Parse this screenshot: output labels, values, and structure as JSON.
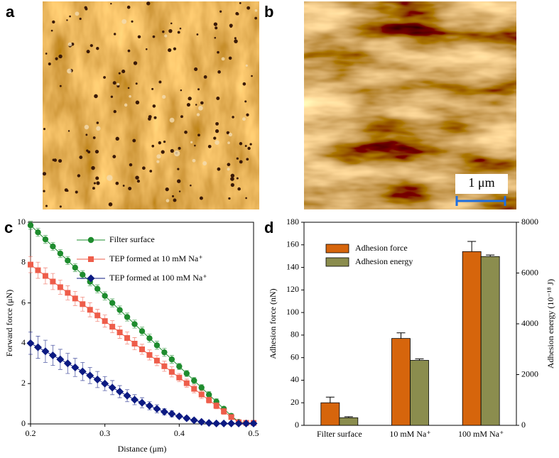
{
  "panels": [
    "a",
    "b",
    "c",
    "d"
  ],
  "scale_bar": "1 μm",
  "chart_data": [
    {
      "type": "line",
      "x": [
        0.2,
        0.21,
        0.22,
        0.23,
        0.24,
        0.25,
        0.26,
        0.27,
        0.28,
        0.29,
        0.3,
        0.31,
        0.32,
        0.33,
        0.34,
        0.35,
        0.36,
        0.37,
        0.38,
        0.39,
        0.4,
        0.41,
        0.42,
        0.43,
        0.44,
        0.45,
        0.46,
        0.47,
        0.48,
        0.49,
        0.5
      ],
      "xlabel": "Distance (μm)",
      "ylabel": "Forward force (μN)",
      "xlim": [
        0.2,
        0.5
      ],
      "xticks": [
        0.2,
        0.3,
        0.4,
        0.5
      ],
      "ylim": [
        0,
        10
      ],
      "yticks": [
        0,
        2,
        4,
        6,
        8,
        10
      ],
      "series": [
        {
          "name": "Filter surface",
          "color": "#1e8c2e",
          "marker": "circle",
          "values": [
            9.85,
            9.5,
            9.15,
            8.8,
            8.45,
            8.1,
            7.75,
            7.4,
            7.05,
            6.7,
            6.35,
            6.0,
            5.65,
            5.3,
            4.95,
            4.6,
            4.25,
            3.9,
            3.55,
            3.2,
            2.85,
            2.5,
            2.15,
            1.8,
            1.45,
            1.1,
            0.75,
            0.4,
            0.1,
            0.05,
            0.05
          ],
          "errors": [
            0.2,
            0.2,
            0.2,
            0.2,
            0.2,
            0.2,
            0.2,
            0.2,
            0.2,
            0.2,
            0.2,
            0.2,
            0.2,
            0.2,
            0.2,
            0.2,
            0.2,
            0.2,
            0.2,
            0.2,
            0.15,
            0.15,
            0.15,
            0.15,
            0.15,
            0.15,
            0.1,
            0.1,
            0.05,
            0.05,
            0.05
          ]
        },
        {
          "name": "TEP formed at 10 mM Na⁺",
          "color": "#ee5d4a",
          "marker": "square",
          "values": [
            7.9,
            7.62,
            7.34,
            7.06,
            6.78,
            6.5,
            6.22,
            5.94,
            5.66,
            5.38,
            5.1,
            4.82,
            4.54,
            4.26,
            3.98,
            3.7,
            3.42,
            3.14,
            2.86,
            2.58,
            2.3,
            2.02,
            1.74,
            1.46,
            1.18,
            0.9,
            0.62,
            0.34,
            0.08,
            0.05,
            0.05
          ],
          "errors": [
            0.4,
            0.4,
            0.4,
            0.4,
            0.35,
            0.35,
            0.35,
            0.35,
            0.35,
            0.3,
            0.3,
            0.3,
            0.3,
            0.3,
            0.3,
            0.25,
            0.25,
            0.25,
            0.25,
            0.25,
            0.2,
            0.2,
            0.2,
            0.2,
            0.15,
            0.15,
            0.15,
            0.1,
            0.05,
            0.05,
            0.05
          ]
        },
        {
          "name": "TEP formed at 100 mM Na⁺",
          "color": "#0c1a82",
          "marker": "diamond",
          "values": [
            4.0,
            3.8,
            3.6,
            3.4,
            3.2,
            3.0,
            2.8,
            2.6,
            2.4,
            2.2,
            2.0,
            1.8,
            1.6,
            1.4,
            1.2,
            1.05,
            0.9,
            0.75,
            0.6,
            0.5,
            0.38,
            0.28,
            0.18,
            0.1,
            0.05,
            0.02,
            0.02,
            0.02,
            0.02,
            0.02,
            0.02
          ],
          "errors": [
            0.55,
            0.55,
            0.55,
            0.5,
            0.5,
            0.5,
            0.45,
            0.45,
            0.4,
            0.4,
            0.35,
            0.35,
            0.3,
            0.3,
            0.25,
            0.25,
            0.2,
            0.2,
            0.15,
            0.15,
            0.1,
            0.1,
            0.1,
            0.05,
            0.05,
            0.02,
            0.02,
            0.02,
            0.02,
            0.02,
            0.02
          ]
        }
      ]
    },
    {
      "type": "bar",
      "categories": [
        "Filter surface",
        "10 mM Na⁺",
        "100 mM Na⁺"
      ],
      "ylabel": "Adhesion force (nN)",
      "y2label": "Adhesion energy (10⁻¹⁸ J)",
      "ylim": [
        0,
        180
      ],
      "yticks": [
        0,
        20,
        40,
        60,
        80,
        100,
        120,
        140,
        160,
        180
      ],
      "y2lim": [
        0,
        8000
      ],
      "y2ticks": [
        0,
        2000,
        4000,
        6000,
        8000
      ],
      "series": [
        {
          "name": "Adhesion force",
          "color": "#d6650c",
          "values": [
            20,
            77,
            154
          ],
          "errors": [
            5,
            5,
            9
          ]
        },
        {
          "name": "Adhesion energy",
          "color": "#8b8d4e",
          "axis": "y2",
          "values": [
            300,
            2560,
            6650
          ],
          "errors": [
            40,
            60,
            60
          ]
        }
      ]
    }
  ]
}
